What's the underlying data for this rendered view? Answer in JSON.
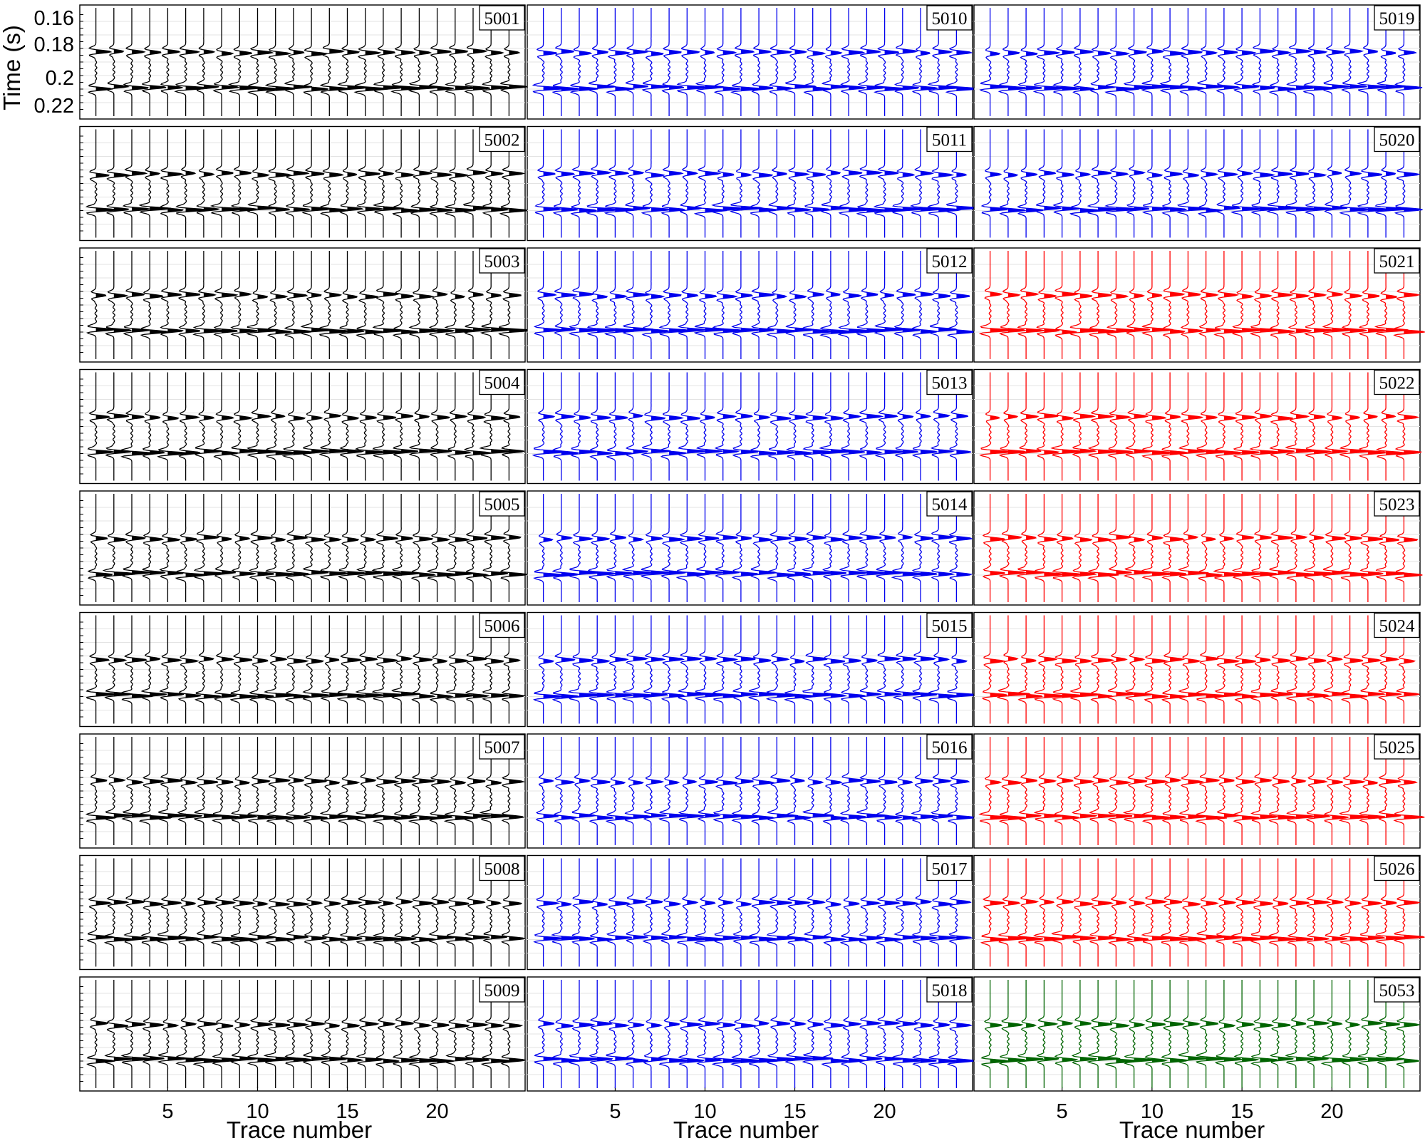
{
  "chart_data": {
    "type": "line",
    "description_kind": "seismic trace gathers (wiggle plots)",
    "ylabel": "Time (s)",
    "xlabel": "Trace number",
    "y_ticks": [
      "0.16",
      "0.18",
      "0.2",
      "0.22"
    ],
    "y_tick_values": [
      0.16,
      0.18,
      0.2,
      0.22
    ],
    "ylim": [
      0.15,
      0.23
    ],
    "y_inverted": true,
    "x_ticks": [
      "5",
      "10",
      "15",
      "20"
    ],
    "x_tick_values": [
      5,
      10,
      15,
      20
    ],
    "xlim": [
      0.5,
      24.5
    ],
    "trace_count": 24,
    "event_times_s": [
      0.183,
      0.209
    ],
    "colors": {
      "black": "#000000",
      "blue": "#0000ee",
      "red": "#ff0000",
      "green": "#006400"
    },
    "columns": [
      {
        "panels": [
          {
            "id": "5001",
            "color": "#000000"
          },
          {
            "id": "5002",
            "color": "#000000"
          },
          {
            "id": "5003",
            "color": "#000000"
          },
          {
            "id": "5004",
            "color": "#000000"
          },
          {
            "id": "5005",
            "color": "#000000"
          },
          {
            "id": "5006",
            "color": "#000000"
          },
          {
            "id": "5007",
            "color": "#000000"
          },
          {
            "id": "5008",
            "color": "#000000"
          },
          {
            "id": "5009",
            "color": "#000000"
          }
        ]
      },
      {
        "panels": [
          {
            "id": "5010",
            "color": "#0000ee"
          },
          {
            "id": "5011",
            "color": "#0000ee"
          },
          {
            "id": "5012",
            "color": "#0000ee"
          },
          {
            "id": "5013",
            "color": "#0000ee"
          },
          {
            "id": "5014",
            "color": "#0000ee"
          },
          {
            "id": "5015",
            "color": "#0000ee"
          },
          {
            "id": "5016",
            "color": "#0000ee"
          },
          {
            "id": "5017",
            "color": "#0000ee"
          },
          {
            "id": "5018",
            "color": "#0000ee"
          }
        ]
      },
      {
        "panels": [
          {
            "id": "5019",
            "color": "#0000ee"
          },
          {
            "id": "5020",
            "color": "#0000ee"
          },
          {
            "id": "5021",
            "color": "#ff0000"
          },
          {
            "id": "5022",
            "color": "#ff0000"
          },
          {
            "id": "5023",
            "color": "#ff0000"
          },
          {
            "id": "5024",
            "color": "#ff0000"
          },
          {
            "id": "5025",
            "color": "#ff0000"
          },
          {
            "id": "5026",
            "color": "#ff0000"
          },
          {
            "id": "5053",
            "color": "#006400"
          }
        ]
      }
    ]
  }
}
